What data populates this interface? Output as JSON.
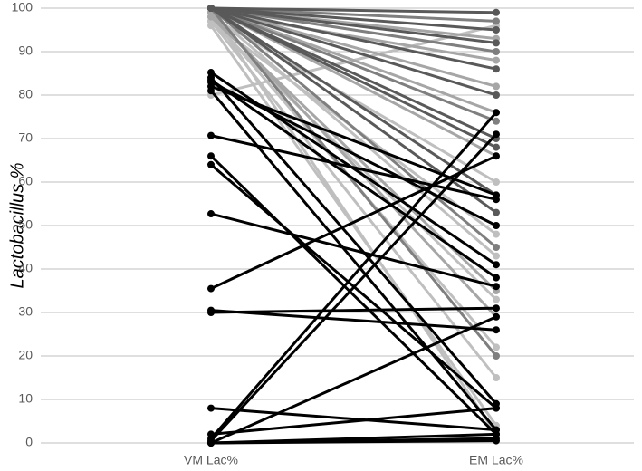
{
  "chart_data": {
    "type": "slope",
    "y_label": "Lactobacillus %",
    "categories": [
      "VM Lac%",
      "EM Lac%"
    ],
    "ylim": [
      0,
      100
    ],
    "yticks": [
      0,
      10,
      20,
      30,
      40,
      50,
      60,
      70,
      80,
      90,
      100
    ],
    "grid": true,
    "series": [
      {
        "color": "#bfbfbf",
        "values": [
          97,
          15
        ]
      },
      {
        "color": "#bfbfbf",
        "values": [
          96,
          4
        ]
      },
      {
        "color": "#bfbfbf",
        "values": [
          98,
          22
        ]
      },
      {
        "color": "#bfbfbf",
        "values": [
          97,
          48
        ]
      },
      {
        "color": "#bfbfbf",
        "values": [
          80,
          96
        ]
      },
      {
        "color": "#bfbfbf",
        "values": [
          99,
          2
        ]
      },
      {
        "color": "#bfbfbf",
        "values": [
          98,
          60
        ]
      },
      {
        "color": "#bfbfbf",
        "values": [
          97,
          33
        ]
      },
      {
        "color": "#bfbfbf",
        "values": [
          99,
          43
        ]
      },
      {
        "color": "#a6a6a6",
        "values": [
          100,
          93
        ]
      },
      {
        "color": "#a6a6a6",
        "values": [
          99,
          88
        ]
      },
      {
        "color": "#a6a6a6",
        "values": [
          100,
          76
        ]
      },
      {
        "color": "#a6a6a6",
        "values": [
          100,
          66
        ]
      },
      {
        "color": "#a6a6a6",
        "values": [
          98,
          35
        ]
      },
      {
        "color": "#a6a6a6",
        "values": [
          100,
          82
        ]
      },
      {
        "color": "#a6a6a6",
        "values": [
          99,
          29
        ]
      },
      {
        "color": "#7f7f7f",
        "values": [
          100,
          97
        ]
      },
      {
        "color": "#7f7f7f",
        "values": [
          100,
          90
        ]
      },
      {
        "color": "#7f7f7f",
        "values": [
          100,
          74
        ]
      },
      {
        "color": "#7f7f7f",
        "values": [
          100,
          20
        ]
      },
      {
        "color": "#7f7f7f",
        "values": [
          100,
          45
        ]
      },
      {
        "color": "#595959",
        "values": [
          100,
          99
        ]
      },
      {
        "color": "#595959",
        "values": [
          100,
          95
        ]
      },
      {
        "color": "#595959",
        "values": [
          100,
          92
        ]
      },
      {
        "color": "#595959",
        "values": [
          100,
          86
        ]
      },
      {
        "color": "#595959",
        "values": [
          100,
          80
        ]
      },
      {
        "color": "#595959",
        "values": [
          100,
          70
        ]
      },
      {
        "color": "#595959",
        "values": [
          100,
          57
        ]
      },
      {
        "color": "#595959",
        "values": [
          100,
          53
        ]
      },
      {
        "color": "#595959",
        "values": [
          100,
          68
        ]
      },
      {
        "color": "#000000",
        "values": [
          85.2,
          41
        ]
      },
      {
        "color": "#000000",
        "values": [
          84,
          9
        ]
      },
      {
        "color": "#000000",
        "values": [
          83.5,
          38
        ]
      },
      {
        "color": "#000000",
        "values": [
          83,
          50
        ]
      },
      {
        "color": "#000000",
        "values": [
          82,
          57
        ]
      },
      {
        "color": "#000000",
        "values": [
          81,
          3
        ]
      },
      {
        "color": "#000000",
        "values": [
          70.7,
          56
        ]
      },
      {
        "color": "#000000",
        "values": [
          66,
          2
        ]
      },
      {
        "color": "#000000",
        "values": [
          64,
          8
        ]
      },
      {
        "color": "#000000",
        "values": [
          52.7,
          36
        ]
      },
      {
        "color": "#000000",
        "values": [
          35.5,
          66
        ]
      },
      {
        "color": "#000000",
        "values": [
          30.5,
          26
        ]
      },
      {
        "color": "#000000",
        "values": [
          30,
          31
        ]
      },
      {
        "color": "#000000",
        "values": [
          8,
          3
        ]
      },
      {
        "color": "#000000",
        "values": [
          2,
          8
        ]
      },
      {
        "color": "#000000",
        "values": [
          1,
          76
        ]
      },
      {
        "color": "#000000",
        "values": [
          0.5,
          71
        ]
      },
      {
        "color": "#000000",
        "values": [
          0,
          1
        ]
      },
      {
        "color": "#000000",
        "values": [
          0,
          2
        ]
      },
      {
        "color": "#000000",
        "values": [
          0,
          29
        ]
      },
      {
        "color": "#000000",
        "values": [
          0,
          0.5
        ]
      }
    ]
  }
}
